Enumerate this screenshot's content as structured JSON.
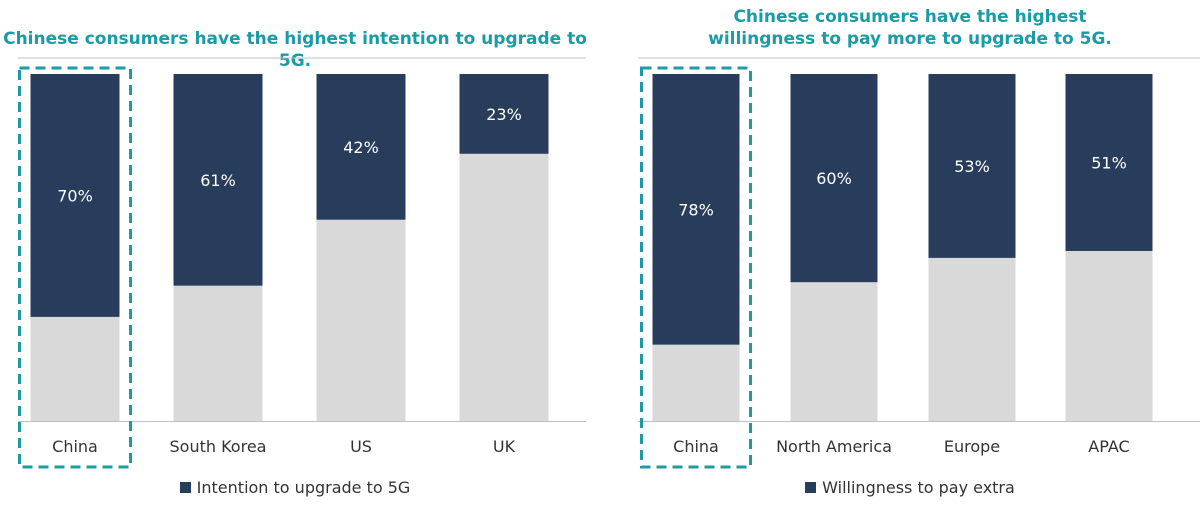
{
  "colors": {
    "accent": "#1a9ba6",
    "series": "#283d5c",
    "remainder": "#d9d9d9",
    "axis": "#bfbfbf",
    "text": "#333333"
  },
  "chart_data": [
    {
      "type": "bar",
      "stacked": true,
      "title": "Chinese consumers have the highest intention to upgrade to 5G.",
      "categories": [
        "China",
        "South Korea",
        "US",
        "UK"
      ],
      "series": [
        {
          "name": "Intention to upgrade to 5G",
          "values": [
            70,
            61,
            42,
            23
          ]
        }
      ],
      "data_labels": [
        "70%",
        "61%",
        "42%",
        "23%"
      ],
      "ylim": [
        0,
        100
      ],
      "highlight": "China",
      "legend": "bottom"
    },
    {
      "type": "bar",
      "stacked": true,
      "title": "Chinese consumers have the highest willingness to pay more to upgrade to 5G.",
      "categories": [
        "China",
        "North America",
        "Europe",
        "APAC"
      ],
      "series": [
        {
          "name": "Willingness to pay extra",
          "values": [
            78,
            60,
            53,
            51
          ]
        }
      ],
      "data_labels": [
        "78%",
        "60%",
        "53%",
        "51%"
      ],
      "ylim": [
        0,
        100
      ],
      "highlight": "China",
      "legend": "bottom"
    }
  ]
}
